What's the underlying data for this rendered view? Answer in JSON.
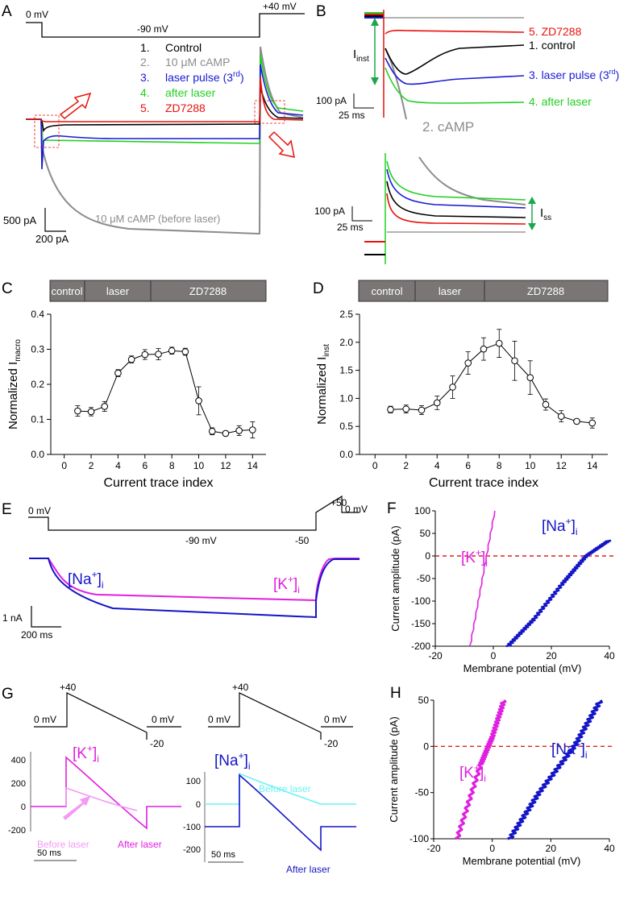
{
  "panels": {
    "a": "A",
    "b": "B",
    "c": "C",
    "d": "D",
    "e": "E",
    "f": "F",
    "g": "G",
    "h": "H"
  },
  "colors": {
    "control": "#000000",
    "camp": "#8c8c8c",
    "laser": "#1a1ad6",
    "after": "#22d022",
    "zd": "#e8120c",
    "k": "#e020e0",
    "na": "#1515c8",
    "k_before": "#f49af4",
    "na_before": "#6ef2f2",
    "guide": "#1aa84a",
    "zero": "#e02020",
    "bar": "#7a7676"
  },
  "panel_a": {
    "v_hold": "0 mV",
    "v_step": "-90 mV",
    "v_tail": "+40 mV",
    "legend": [
      {
        "num": "1.",
        "label": "Control"
      },
      {
        "num": "2.",
        "label": "10 μM cAMP"
      },
      {
        "num": "3.",
        "label": "laser pulse (3",
        "sup": "rd",
        "end": ")"
      },
      {
        "num": "4.",
        "label": "after laser"
      },
      {
        "num": "5.",
        "label": "ZD7288"
      }
    ],
    "camp_note": "10 μM cAMP (before laser)",
    "scale_v": "500 pA",
    "scale_h": "200 pA"
  },
  "panel_b": {
    "iinst": "I",
    "iinst_sub": "inst",
    "labels": {
      "zd": "5. ZD7288",
      "control": "1. control",
      "laser": "3. laser pulse (3",
      "laser_sup": "rd",
      "laser_end": ")",
      "after": "4. after laser",
      "camp": "2. cAMP"
    },
    "scale_v": "100 pA",
    "scale_h": "25 ms",
    "iss": "I",
    "iss_sub": "ss"
  },
  "protocol_bar": [
    "control",
    "laser",
    "ZD7288"
  ],
  "chart_data": [
    {
      "type": "line",
      "panel": "C",
      "xlabel": "Current trace index",
      "ylabel": "Normalized I",
      "ylabel_sub": "macro",
      "xlim": [
        -1,
        15
      ],
      "ylim": [
        0,
        0.4
      ],
      "xticks": [
        "0",
        "2",
        "4",
        "6",
        "8",
        "10",
        "12",
        "14"
      ],
      "yticks": [
        "0.0",
        "0.1",
        "0.2",
        "0.3",
        "0.4"
      ],
      "x": [
        1,
        2,
        3,
        4,
        5,
        6,
        7,
        8,
        9,
        10,
        11,
        12,
        13,
        14
      ],
      "y": [
        0.124,
        0.122,
        0.137,
        0.232,
        0.271,
        0.285,
        0.286,
        0.296,
        0.293,
        0.153,
        0.066,
        0.06,
        0.068,
        0.07
      ],
      "err": [
        0.015,
        0.012,
        0.014,
        0.01,
        0.01,
        0.014,
        0.016,
        0.01,
        0.01,
        0.04,
        0.01,
        0.007,
        0.014,
        0.023
      ]
    },
    {
      "type": "line",
      "panel": "D",
      "xlabel": "Current trace index",
      "ylabel": "Normalized I",
      "ylabel_sub": "inst",
      "xlim": [
        -1,
        15
      ],
      "ylim": [
        0,
        2.5
      ],
      "xticks": [
        "0",
        "2",
        "4",
        "6",
        "8",
        "10",
        "12",
        "14"
      ],
      "yticks": [
        "0.0",
        "0.5",
        "1.0",
        "1.5",
        "2.0",
        "2.5"
      ],
      "x": [
        1,
        2,
        3,
        4,
        5,
        6,
        7,
        8,
        9,
        10,
        11,
        12,
        13,
        14
      ],
      "y": [
        0.8,
        0.81,
        0.79,
        0.92,
        1.2,
        1.63,
        1.88,
        1.98,
        1.67,
        1.37,
        0.89,
        0.68,
        0.59,
        0.56
      ],
      "err": [
        0.06,
        0.07,
        0.08,
        0.12,
        0.2,
        0.2,
        0.2,
        0.25,
        0.35,
        0.3,
        0.1,
        0.1,
        0.03,
        0.09
      ]
    },
    {
      "type": "line",
      "panel": "F",
      "xlabel": "Membrane potential (mV)",
      "ylabel": "Current amplitude (pA)",
      "xlim": [
        -20,
        40
      ],
      "ylim": [
        100,
        -200
      ],
      "xticks": [
        "-20",
        "0",
        "20",
        "40"
      ],
      "yticks": [
        "-200",
        "-150",
        "-100",
        "-50",
        "0",
        "50",
        "100"
      ],
      "series": [
        {
          "name": "[K+]i",
          "points": [
            [
              -8,
              -200
            ],
            [
              0.5,
              100
            ]
          ]
        },
        {
          "name": "[Na+]i",
          "points": [
            [
              5,
              -200
            ],
            [
              14,
              -140
            ],
            [
              24,
              -60
            ],
            [
              32,
              0
            ],
            [
              40,
              35
            ]
          ]
        }
      ]
    },
    {
      "type": "line",
      "panel": "H",
      "xlabel": "Membrane potential (mV)",
      "ylabel": "Current amplitude (pA)",
      "xlim": [
        -20,
        40
      ],
      "ylim": [
        50,
        -100
      ],
      "xticks": [
        "-20",
        "0",
        "20",
        "40"
      ],
      "yticks": [
        "-100",
        "-50",
        "0",
        "50"
      ],
      "series": [
        {
          "name": "[K+]i",
          "points": [
            [
              -12,
              -100
            ],
            [
              -4,
              -20
            ],
            [
              0,
              10
            ],
            [
              4,
              50
            ]
          ]
        },
        {
          "name": "[Na+]i",
          "points": [
            [
              6,
              -100
            ],
            [
              16,
              -50
            ],
            [
              28,
              0
            ],
            [
              37,
              50
            ]
          ]
        }
      ]
    }
  ],
  "panel_e": {
    "v0": "0 mV",
    "v90": "-90 mV",
    "v50p": "+50",
    "v0b": "0 mV",
    "v50n": "-50",
    "na": "[Na",
    "na_sup": "+",
    "na_sub": "i",
    "k": "[K",
    "k_sup": "+",
    "k_sub": "i",
    "scale_v": "1 nA",
    "scale_h": "200 ms"
  },
  "panel_g": {
    "v40": "+40",
    "v0": "0 mV",
    "v20": "-20",
    "k": "[K",
    "k_sup": "+",
    "k_sub": "i",
    "na": "[Na",
    "na_sup": "+",
    "na_sub": "i",
    "k_yticks": [
      "400",
      "200",
      "0",
      "-200"
    ],
    "na_yticks": [
      "100",
      "0",
      "-100",
      "-200"
    ],
    "before": "Before laser",
    "after": "After laser",
    "scale_h": "50 ms"
  },
  "panel_h_labels": {
    "k": "[K",
    "k_sup": "+",
    "k_sub": "i",
    "na": "[Na",
    "na_sup": "+",
    "na_sub": "i"
  }
}
